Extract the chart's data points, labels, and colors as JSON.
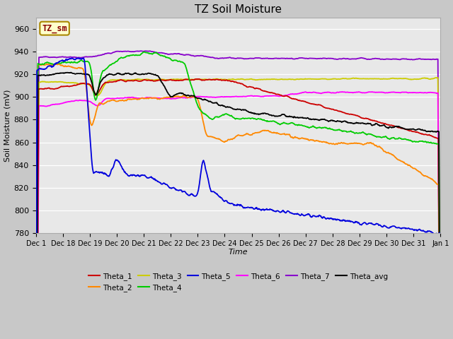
{
  "title": "TZ Soil Moisture",
  "ylabel": "Soil Moisture (mV)",
  "xlabel": "Time",
  "ylim": [
    780,
    970
  ],
  "yticks": [
    780,
    800,
    820,
    840,
    860,
    880,
    900,
    920,
    940,
    960
  ],
  "x_labels": [
    "Dec 1",
    "Dec 18",
    "Dec 19",
    "Dec 20",
    "Dec 21",
    "Dec 22",
    "Dec 23",
    "Dec 24",
    "Dec 25",
    "Dec 26",
    "Dec 27",
    "Dec 28",
    "Dec 29",
    "Dec 30",
    "Dec 31",
    "Jan 1"
  ],
  "legend_label": "TZ_sm",
  "fig_bg": "#d0d0d0",
  "axes_bg": "#e8e8e8",
  "grid_color": "#ffffff",
  "series_colors": {
    "Theta_1": "#cc0000",
    "Theta_2": "#ff8800",
    "Theta_3": "#cccc00",
    "Theta_4": "#00cc00",
    "Theta_5": "#0000dd",
    "Theta_6": "#ff00ff",
    "Theta_7": "#8800cc",
    "Theta_avg": "#000000"
  }
}
